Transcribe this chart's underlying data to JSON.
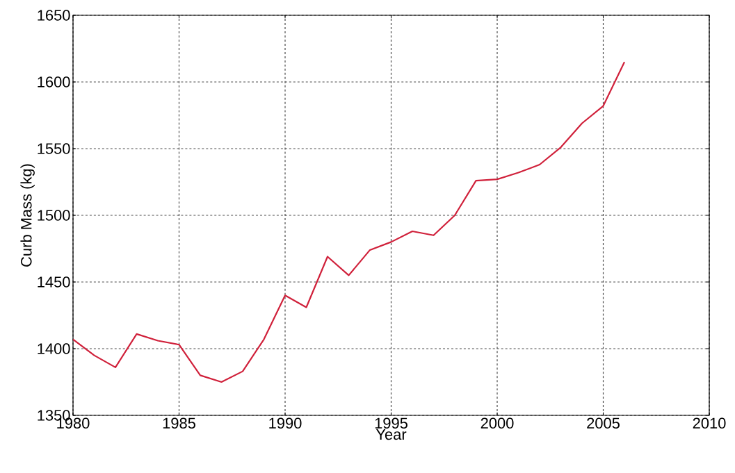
{
  "chart_data": {
    "type": "line",
    "xlabel": "Year",
    "ylabel": "Curb Mass (kg)",
    "x": [
      1980,
      1981,
      1982,
      1983,
      1984,
      1985,
      1986,
      1987,
      1988,
      1989,
      1990,
      1991,
      1992,
      1993,
      1994,
      1995,
      1996,
      1997,
      1998,
      1999,
      2000,
      2001,
      2002,
      2003,
      2004,
      2005,
      2006
    ],
    "series": [
      {
        "color": "#d0203a",
        "values": [
          1407,
          1395,
          1386,
          1411,
          1406,
          1403,
          1380,
          1375,
          1383,
          1407,
          1440,
          1431,
          1469,
          1455,
          1474,
          1480,
          1488,
          1485,
          1500,
          1526,
          1527,
          1532,
          1538,
          1551,
          1569,
          1582,
          1615
        ]
      }
    ],
    "xlim": [
      1980,
      2010
    ],
    "ylim": [
      1350,
      1650
    ],
    "xticks": [
      1980,
      1985,
      1990,
      1995,
      2000,
      2005,
      2010
    ],
    "yticks": [
      1350,
      1400,
      1450,
      1500,
      1550,
      1600,
      1650
    ],
    "grid": true,
    "line_style": "solid",
    "marker": "none"
  }
}
